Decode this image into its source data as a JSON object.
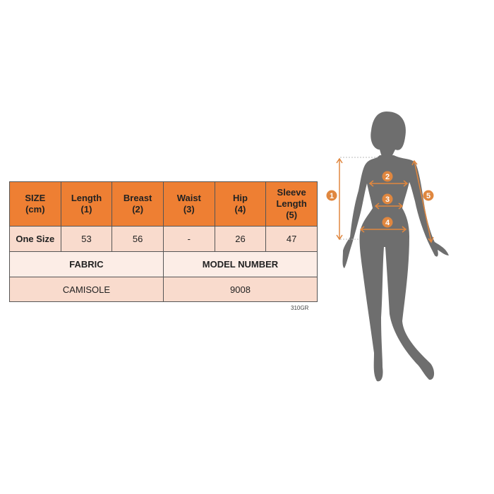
{
  "table": {
    "headers": [
      "SIZE\n(cm)",
      "Length\n(1)",
      "Breast\n(2)",
      "Waist\n(3)",
      "Hip\n(4)",
      "Sleeve\nLength\n(5)"
    ],
    "row": [
      "One Size",
      "53",
      "56",
      "-",
      "26",
      "47"
    ],
    "fabric_label": "FABRIC",
    "model_label": "MODEL NUMBER",
    "fabric_value": "CAMISOLE",
    "model_value": "9008"
  },
  "code": "310GR",
  "figure": {
    "markers": [
      "1",
      "2",
      "3",
      "4",
      "5"
    ]
  },
  "colors": {
    "header": "#EE7F33",
    "accent": "#E0873F",
    "silhouette": "#6E6E6E"
  }
}
